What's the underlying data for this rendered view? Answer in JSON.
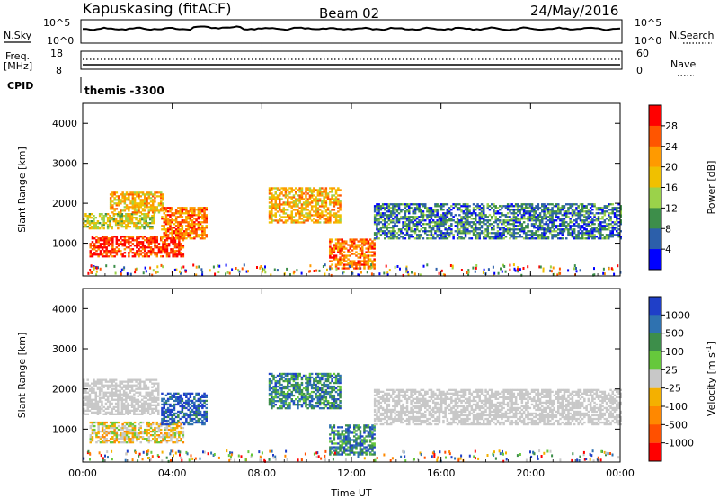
{
  "header": {
    "station": "Kapuskasing (fitACF)",
    "beam": "Beam 02",
    "date": "24/May/2016"
  },
  "top_panels": {
    "nsky_label": "N.Sky",
    "nsky_ticks": [
      "10^5",
      "10^0"
    ],
    "nsearch_label": "N.Search",
    "freq_label": "Freq.",
    "freq_unit": "[MHz]",
    "freq_ticks": [
      "18",
      "8"
    ],
    "nave_label": "Nave",
    "nave_ticks": [
      "60",
      "0"
    ],
    "cpid_label": "CPID",
    "cpid_value": "themis -3300"
  },
  "chart_data": [
    {
      "type": "heatmap",
      "name": "power",
      "xlabel": "Time UT",
      "ylabel": "Slant Range [km]",
      "xlim": [
        0,
        24
      ],
      "ylim": [
        180,
        4500
      ],
      "xticks": [
        "00:00",
        "04:00",
        "08:00",
        "12:00",
        "16:00",
        "20:00",
        "00:00"
      ],
      "yticks": [
        1000,
        2000,
        3000,
        4000
      ],
      "colorbar": {
        "label": "Power [dB]",
        "ticks": [
          "28",
          "24",
          "20",
          "16",
          "12",
          "8",
          "4"
        ],
        "colors": [
          "#ff0000",
          "#ff5500",
          "#ff9a00",
          "#f0c000",
          "#9bd24a",
          "#3d8e4a",
          "#2c5faa",
          "#0000ff"
        ]
      },
      "regions": [
        {
          "t": [
            0.0,
            3.2
          ],
          "r": [
            1350,
            1750
          ],
          "level": 4
        },
        {
          "t": [
            1.2,
            3.6
          ],
          "r": [
            1750,
            2250
          ],
          "level": 3
        },
        {
          "t": [
            0.3,
            4.5
          ],
          "r": [
            650,
            1150
          ],
          "level": 1
        },
        {
          "t": [
            3.5,
            5.5
          ],
          "r": [
            1100,
            1900
          ],
          "level": 2
        },
        {
          "t": [
            8.3,
            11.5
          ],
          "r": [
            1500,
            2400
          ],
          "level": 3
        },
        {
          "t": [
            11.0,
            13.0
          ],
          "r": [
            350,
            1100
          ],
          "level": 2
        },
        {
          "t": [
            13.0,
            24.0
          ],
          "r": [
            1100,
            2000
          ],
          "level": 6
        }
      ]
    },
    {
      "type": "heatmap",
      "name": "velocity",
      "xlabel": "Time UT",
      "ylabel": "Slant Range [km]",
      "xlim": [
        0,
        24
      ],
      "ylim": [
        180,
        4500
      ],
      "xticks": [
        "00:00",
        "04:00",
        "08:00",
        "12:00",
        "16:00",
        "20:00",
        "00:00"
      ],
      "yticks": [
        1000,
        2000,
        3000,
        4000
      ],
      "colorbar": {
        "label": "Velocity [m s",
        "label_exp": "-1",
        "label_close": "]",
        "ticks": [
          "1000",
          "500",
          "100",
          "25",
          "-25",
          "-100",
          "-500",
          "-1000"
        ],
        "colors": [
          "#1f3fc8",
          "#2f72b0",
          "#3d8e4a",
          "#66c83c",
          "#c8c8c8",
          "#f4b000",
          "#ff8800",
          "#ff5000",
          "#ff0000"
        ]
      },
      "regions": [
        {
          "t": [
            0.0,
            3.4
          ],
          "r": [
            1350,
            2250
          ],
          "value": "ground-scatter"
        },
        {
          "t": [
            0.3,
            4.5
          ],
          "r": [
            650,
            1150
          ],
          "value": "-100"
        },
        {
          "t": [
            3.5,
            5.5
          ],
          "r": [
            1100,
            1900
          ],
          "value": "500"
        },
        {
          "t": [
            8.3,
            11.5
          ],
          "r": [
            1500,
            2400
          ],
          "value": "100"
        },
        {
          "t": [
            11.0,
            13.0
          ],
          "r": [
            350,
            1100
          ],
          "value": "100"
        },
        {
          "t": [
            13.0,
            24.0
          ],
          "r": [
            1100,
            2000
          ],
          "value": "ground-scatter"
        }
      ]
    }
  ],
  "colors": {
    "ground_scatter": "#c8c8c8",
    "axis": "#000000"
  }
}
